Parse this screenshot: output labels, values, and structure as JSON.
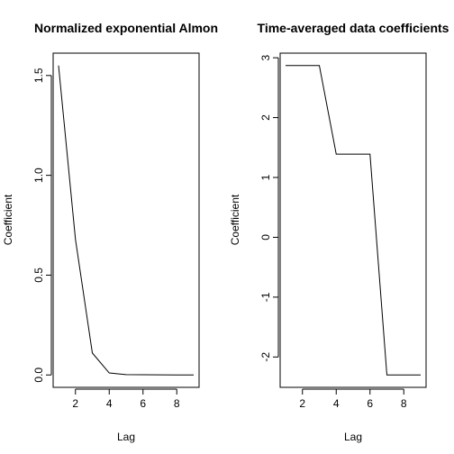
{
  "chart_data": [
    {
      "type": "line",
      "title": "Normalized exponential Almon",
      "xlabel": "Lag",
      "ylabel": "Coefficient",
      "x": [
        1,
        2,
        3,
        4,
        5,
        6,
        7,
        8,
        9
      ],
      "values": [
        1.55,
        0.68,
        0.11,
        0.01,
        0.002,
        0.001,
        0.0005,
        0.0002,
        0.0001
      ],
      "xlim": [
        0.68,
        9.32
      ],
      "ylim": [
        -0.062,
        1.612
      ],
      "xticks": [
        2,
        4,
        6,
        8
      ],
      "yticks": [
        0.0,
        0.5,
        1.0,
        1.5
      ],
      "ytick_labels": [
        "0.0",
        "0.5",
        "1.0",
        "1.5"
      ],
      "grid": false
    },
    {
      "type": "line",
      "title": "Time-averaged data coefficients",
      "xlabel": "Lag",
      "ylabel": "Coefficient",
      "x": [
        1,
        2,
        3,
        4,
        5,
        6,
        7,
        8,
        9
      ],
      "values": [
        2.87,
        2.87,
        2.87,
        1.39,
        1.39,
        1.39,
        -2.3,
        -2.3,
        -2.3
      ],
      "xlim": [
        0.68,
        9.32
      ],
      "ylim": [
        -2.507,
        3.077
      ],
      "xticks": [
        2,
        4,
        6,
        8
      ],
      "yticks": [
        -2,
        -1,
        0,
        1,
        2,
        3
      ],
      "ytick_labels": [
        "-2",
        "-1",
        "0",
        "1",
        "2",
        "3"
      ],
      "grid": false
    }
  ]
}
